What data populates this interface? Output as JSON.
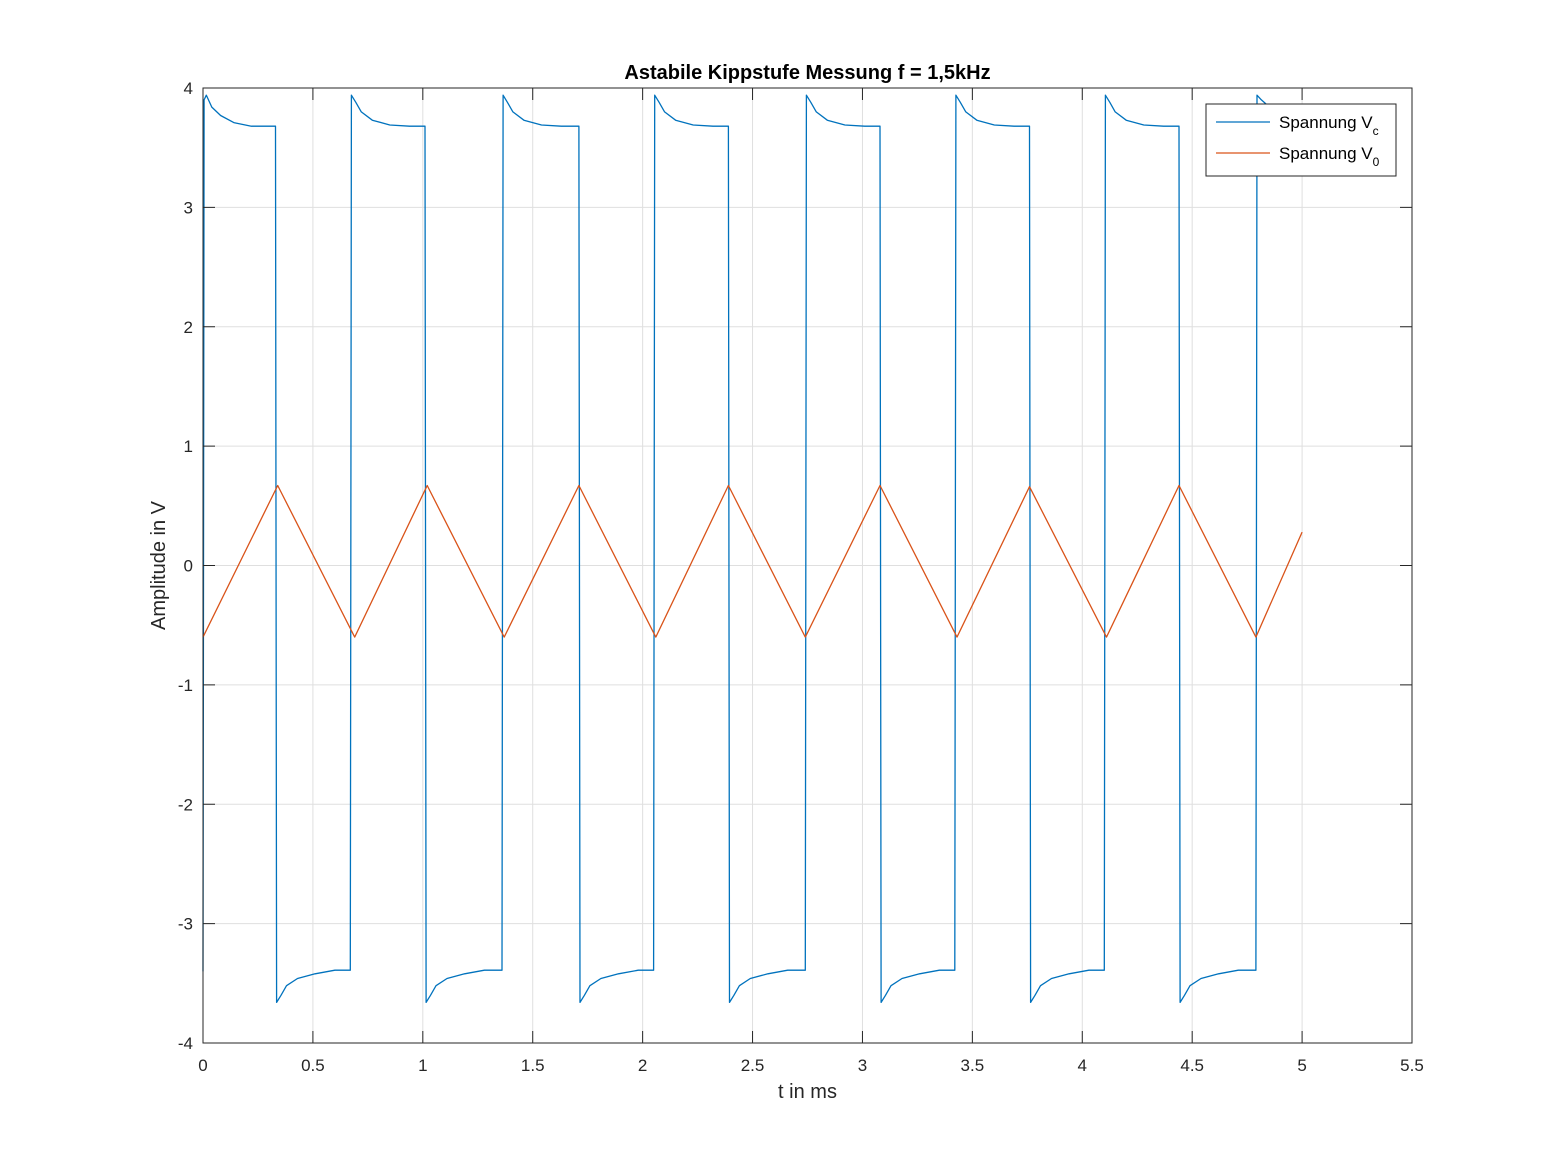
{
  "chart_data": {
    "type": "line",
    "title": "Astabile Kippstufe Messung f = 1,5kHz",
    "xlabel": "t in ms",
    "ylabel": "Amplitude in V",
    "xlim": [
      0,
      5.5
    ],
    "ylim": [
      -4,
      4
    ],
    "xticks": [
      "0",
      "0.5",
      "1",
      "1.5",
      "2",
      "2.5",
      "3",
      "3.5",
      "4",
      "4.5",
      "5",
      "5.5"
    ],
    "yticks": [
      "-4",
      "-3",
      "-2",
      "-1",
      "0",
      "1",
      "2",
      "3",
      "4"
    ],
    "grid": true,
    "legend_position": "top-right",
    "series": [
      {
        "name": "Spannung V",
        "subscript": "c",
        "color": "#0072BD",
        "x": [
          0.0,
          0.005,
          0.015,
          0.02,
          0.04,
          0.08,
          0.14,
          0.22,
          0.33,
          0.335,
          0.355,
          0.38,
          0.43,
          0.51,
          0.6,
          0.67,
          0.675,
          0.695,
          0.72,
          0.77,
          0.85,
          0.94,
          1.01,
          1.015,
          1.035,
          1.06,
          1.11,
          1.19,
          1.28,
          1.36,
          1.365,
          1.385,
          1.41,
          1.46,
          1.54,
          1.63,
          1.71,
          1.715,
          1.735,
          1.76,
          1.81,
          1.89,
          1.98,
          2.05,
          2.055,
          2.075,
          2.1,
          2.15,
          2.23,
          2.32,
          2.39,
          2.395,
          2.415,
          2.44,
          2.49,
          2.57,
          2.66,
          2.74,
          2.745,
          2.765,
          2.79,
          2.84,
          2.92,
          3.01,
          3.08,
          3.085,
          3.105,
          3.13,
          3.18,
          3.26,
          3.35,
          3.42,
          3.425,
          3.445,
          3.47,
          3.52,
          3.6,
          3.69,
          3.76,
          3.765,
          3.785,
          3.81,
          3.86,
          3.94,
          4.03,
          4.1,
          4.105,
          4.125,
          4.15,
          4.2,
          4.28,
          4.37,
          4.44,
          4.445,
          4.465,
          4.49,
          4.54,
          4.62,
          4.71,
          4.79,
          4.795,
          4.815,
          4.84
        ],
        "y": [
          -3.4,
          3.9,
          3.94,
          3.92,
          3.84,
          3.77,
          3.71,
          3.68,
          3.68,
          -3.66,
          -3.6,
          -3.52,
          -3.46,
          -3.42,
          -3.39,
          -3.39,
          3.94,
          3.88,
          3.8,
          3.73,
          3.69,
          3.68,
          3.68,
          -3.66,
          -3.6,
          -3.52,
          -3.46,
          -3.42,
          -3.39,
          -3.39,
          3.94,
          3.88,
          3.8,
          3.73,
          3.69,
          3.68,
          3.68,
          -3.66,
          -3.6,
          -3.52,
          -3.46,
          -3.42,
          -3.39,
          -3.39,
          3.94,
          3.88,
          3.8,
          3.73,
          3.69,
          3.68,
          3.68,
          -3.66,
          -3.6,
          -3.52,
          -3.46,
          -3.42,
          -3.39,
          -3.39,
          3.94,
          3.88,
          3.8,
          3.73,
          3.69,
          3.68,
          3.68,
          -3.66,
          -3.6,
          -3.52,
          -3.46,
          -3.42,
          -3.39,
          -3.39,
          3.94,
          3.88,
          3.8,
          3.73,
          3.69,
          3.68,
          3.68,
          -3.66,
          -3.6,
          -3.52,
          -3.46,
          -3.42,
          -3.39,
          -3.39,
          3.94,
          3.88,
          3.8,
          3.73,
          3.69,
          3.68,
          3.68,
          -3.66,
          -3.6,
          -3.52,
          -3.46,
          -3.42,
          -3.39,
          -3.39,
          3.94,
          3.9,
          3.86
        ]
      },
      {
        "name": "Spannung V",
        "subscript": "0",
        "color": "#D95319",
        "x": [
          0.0,
          0.34,
          0.69,
          1.02,
          1.37,
          1.71,
          2.06,
          2.39,
          2.74,
          3.08,
          3.43,
          3.76,
          4.11,
          4.44,
          4.79,
          5.0
        ],
        "y": [
          -0.6,
          0.67,
          -0.6,
          0.67,
          -0.6,
          0.67,
          -0.6,
          0.67,
          -0.6,
          0.67,
          -0.6,
          0.66,
          -0.6,
          0.67,
          -0.6,
          0.28
        ]
      }
    ]
  }
}
